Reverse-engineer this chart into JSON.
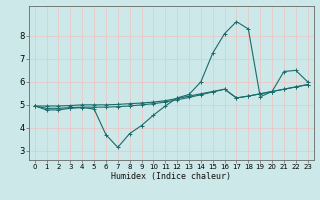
{
  "xlabel": "Humidex (Indice chaleur)",
  "background_color": "#cce8e8",
  "grid_color": "#e8c8c8",
  "line_color": "#1a6b6b",
  "xlim": [
    -0.5,
    23.5
  ],
  "ylim": [
    2.6,
    9.3
  ],
  "yticks": [
    3,
    4,
    5,
    6,
    7,
    8
  ],
  "xticks": [
    0,
    1,
    2,
    3,
    4,
    5,
    6,
    7,
    8,
    9,
    10,
    11,
    12,
    13,
    14,
    15,
    16,
    17,
    18,
    19,
    20,
    21,
    22,
    23
  ],
  "line1_x": [
    0,
    1,
    2,
    3,
    4,
    5,
    6,
    7,
    8,
    9,
    10,
    11,
    12,
    13,
    14,
    15,
    16,
    17,
    18,
    19,
    20,
    21,
    22,
    23
  ],
  "line1_y": [
    4.95,
    4.78,
    4.78,
    4.85,
    4.88,
    4.82,
    3.7,
    3.15,
    3.75,
    4.1,
    4.55,
    4.95,
    5.3,
    5.45,
    6.0,
    7.25,
    8.1,
    8.62,
    8.3,
    5.35,
    5.58,
    6.45,
    6.5,
    6.0
  ],
  "line2_x": [
    0,
    1,
    2,
    3,
    4,
    5,
    6,
    7,
    8,
    9,
    10,
    11,
    12,
    13,
    14,
    15,
    16,
    17,
    18,
    19,
    20,
    21,
    22,
    23
  ],
  "line2_y": [
    4.95,
    4.95,
    4.95,
    4.97,
    5.0,
    5.0,
    5.0,
    5.02,
    5.05,
    5.08,
    5.12,
    5.18,
    5.28,
    5.38,
    5.48,
    5.58,
    5.68,
    5.3,
    5.38,
    5.48,
    5.58,
    5.68,
    5.78,
    5.88
  ],
  "line3_x": [
    0,
    1,
    2,
    3,
    4,
    5,
    6,
    7,
    8,
    9,
    10,
    11,
    12,
    13,
    14,
    15,
    16,
    17,
    18,
    19,
    20,
    21,
    22,
    23
  ],
  "line3_y": [
    4.95,
    4.85,
    4.85,
    4.88,
    4.9,
    4.9,
    4.9,
    4.92,
    4.95,
    5.0,
    5.05,
    5.12,
    5.22,
    5.32,
    5.44,
    5.56,
    5.68,
    5.3,
    5.38,
    5.48,
    5.58,
    5.68,
    5.78,
    5.88
  ]
}
